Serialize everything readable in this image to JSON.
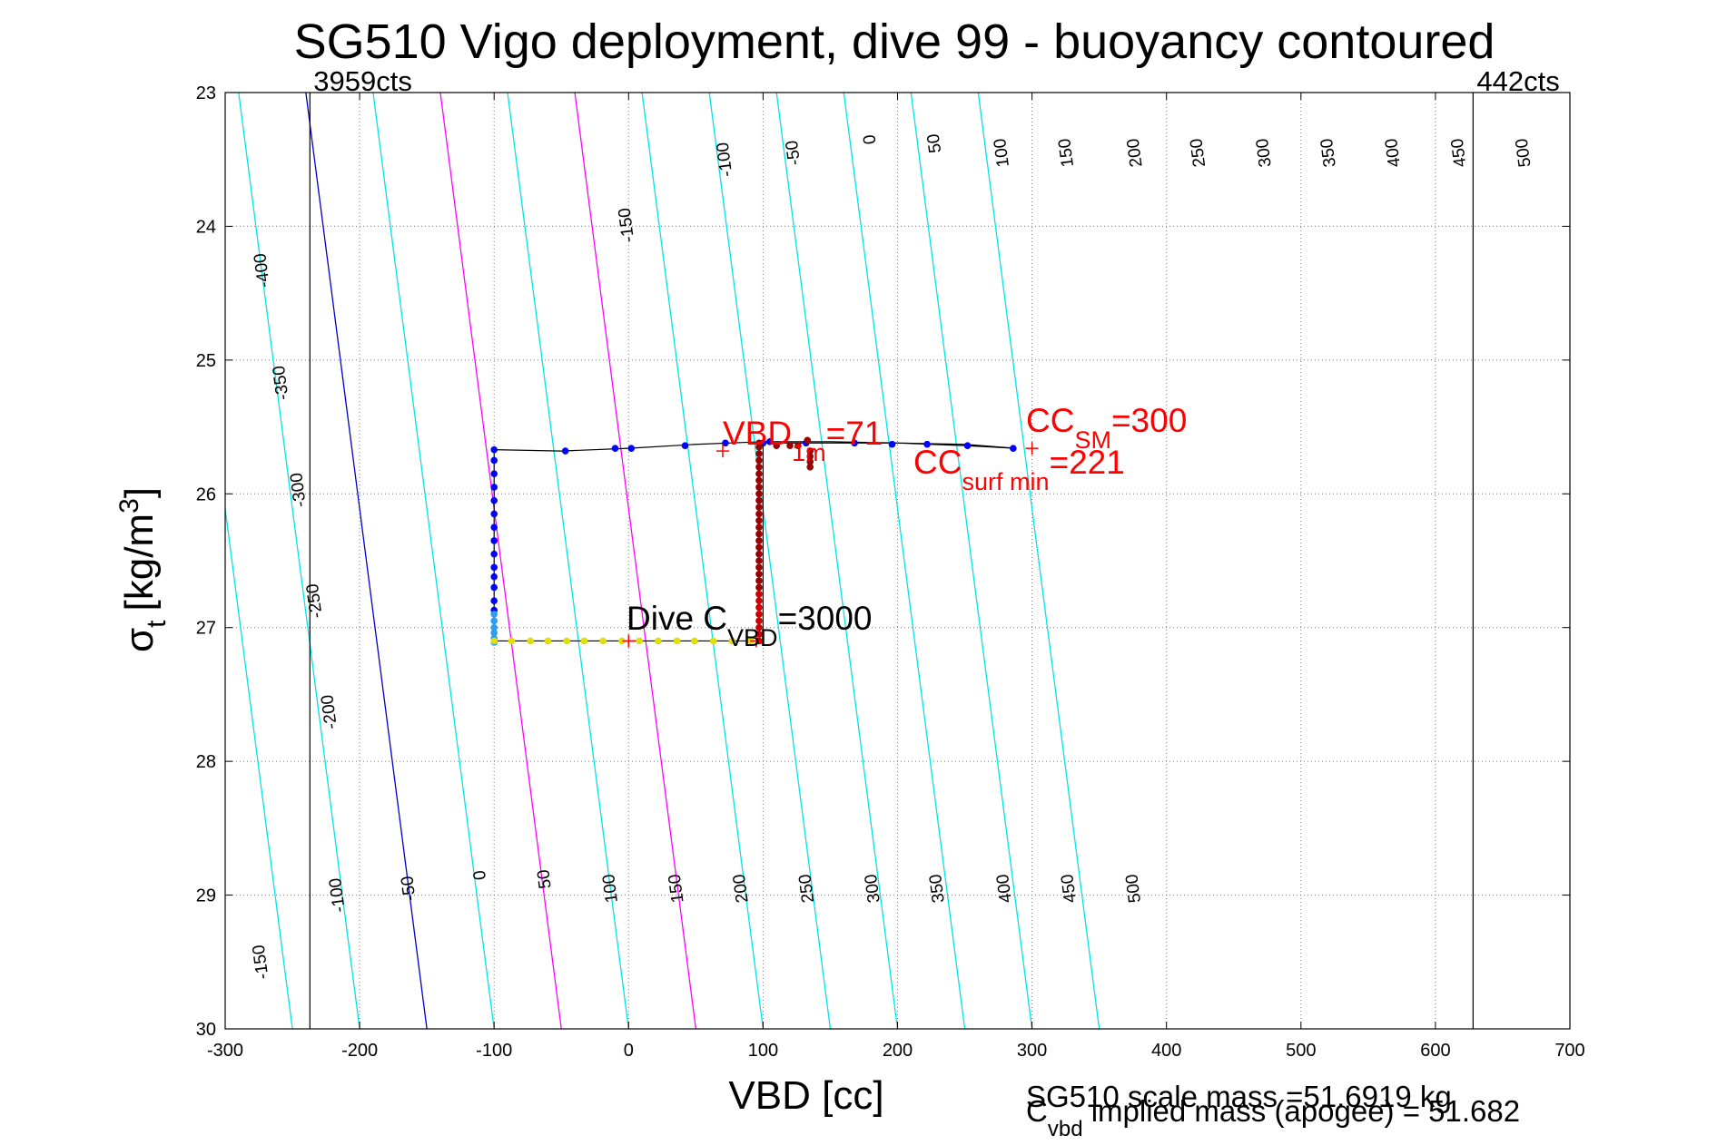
{
  "chart_data": {
    "type": "line",
    "title": "SG510 Vigo deployment, dive 99 - buoyancy contoured",
    "xlabel": "VBD [cc]",
    "ylabel_main": "σ",
    "ylabel_sub": "t",
    "ylabel_unit_pre": "[kg/m",
    "ylabel_unit_sup": "3",
    "ylabel_unit_post": "]",
    "xlim": [
      -300,
      700
    ],
    "ylim": [
      23,
      30
    ],
    "y_reversed": true,
    "grid": true,
    "xticks": [
      -300,
      -200,
      -100,
      0,
      100,
      200,
      300,
      400,
      500,
      600,
      700
    ],
    "yticks": [
      23,
      24,
      25,
      26,
      27,
      28,
      29,
      30
    ],
    "count_labels": {
      "left": {
        "text": "3959cts",
        "x": -237
      },
      "right": {
        "text": "442cts",
        "x": 628
      }
    },
    "contours": {
      "levels": [
        -400,
        -350,
        -300,
        -250,
        -200,
        -150,
        -100,
        -50,
        0,
        50,
        100,
        150,
        200,
        250,
        300,
        350,
        400,
        450,
        500
      ],
      "x_at_top": [
        -640,
        -590,
        -540,
        -490,
        -440,
        -390,
        -340,
        -290,
        -240,
        -190,
        -140,
        -90,
        -40,
        10,
        60,
        110,
        160,
        210,
        260
      ],
      "x_at_bottom": [
        -550,
        -500,
        -450,
        -400,
        -350,
        -300,
        -250,
        -200,
        -150,
        -100,
        -50,
        0,
        50,
        100,
        150,
        200,
        250,
        300,
        350
      ],
      "color_default": "#00e5e5",
      "special": [
        {
          "level": 0,
          "color": "#0000cc"
        },
        {
          "level": 100,
          "color": "#ff00ff"
        },
        {
          "level": 200,
          "color": "#ff00ff"
        }
      ]
    },
    "contour_labels_top": [
      {
        "text": "-400",
        "x": -272,
        "y": 24.33
      },
      {
        "text": "-350",
        "x": -258,
        "y": 25.17
      },
      {
        "text": "-300",
        "x": -245,
        "y": 25.97
      },
      {
        "text": "-250",
        "x": -233,
        "y": 26.8
      },
      {
        "text": "-200",
        "x": -222,
        "y": 27.63
      },
      {
        "text": "-150",
        "x": -1,
        "y": 23.99
      },
      {
        "text": "-100",
        "x": 72,
        "y": 23.5
      },
      {
        "text": "-50",
        "x": 123,
        "y": 23.45
      },
      {
        "text": "0",
        "x": 180,
        "y": 23.35
      },
      {
        "text": "50",
        "x": 228,
        "y": 23.38
      },
      {
        "text": "100",
        "x": 278,
        "y": 23.45
      },
      {
        "text": "150",
        "x": 326,
        "y": 23.45
      },
      {
        "text": "200",
        "x": 377,
        "y": 23.45
      },
      {
        "text": "250",
        "x": 424,
        "y": 23.45
      },
      {
        "text": "300",
        "x": 473,
        "y": 23.45
      },
      {
        "text": "350",
        "x": 521,
        "y": 23.45
      },
      {
        "text": "400",
        "x": 569,
        "y": 23.45
      },
      {
        "text": "450",
        "x": 618,
        "y": 23.45
      },
      {
        "text": "500",
        "x": 666,
        "y": 23.45
      }
    ],
    "contour_labels_bottom": [
      {
        "text": "-150",
        "x": -273,
        "y": 29.5
      },
      {
        "text": "-100",
        "x": -216,
        "y": 29.0
      },
      {
        "text": "-50",
        "x": -163,
        "y": 28.95
      },
      {
        "text": "0",
        "x": -110,
        "y": 28.85
      },
      {
        "text": "50",
        "x": -62,
        "y": 28.88
      },
      {
        "text": "100",
        "x": -13,
        "y": 28.95
      },
      {
        "text": "150",
        "x": 36,
        "y": 28.95
      },
      {
        "text": "200",
        "x": 84,
        "y": 28.95
      },
      {
        "text": "250",
        "x": 133,
        "y": 28.95
      },
      {
        "text": "300",
        "x": 182,
        "y": 28.95
      },
      {
        "text": "350",
        "x": 230,
        "y": 28.95
      },
      {
        "text": "400",
        "x": 280,
        "y": 28.95
      },
      {
        "text": "450",
        "x": 328,
        "y": 28.95
      },
      {
        "text": "500",
        "x": 376,
        "y": 28.95
      }
    ],
    "trajectory_line": {
      "color": "#000000",
      "x": [
        -100,
        -100,
        -50,
        0,
        50,
        100,
        150,
        200,
        250,
        288,
        250,
        200,
        150,
        100,
        100,
        100,
        100,
        100,
        95,
        50,
        0,
        -50,
        -100,
        -100
      ],
      "y": [
        25.75,
        25.67,
        25.68,
        25.66,
        25.63,
        25.61,
        25.61,
        25.62,
        25.63,
        25.66,
        25.64,
        25.62,
        25.62,
        25.62,
        26.2,
        26.6,
        27.0,
        27.12,
        27.1,
        27.1,
        27.1,
        27.1,
        27.1,
        25.75
      ]
    },
    "series_points": [
      {
        "color": "#0000ff",
        "x": [
          -100,
          -100,
          -100,
          -100,
          -100,
          -100,
          -100,
          -100,
          -100,
          -100,
          -100,
          -100,
          -100,
          -100,
          -47,
          -10,
          2,
          42,
          72,
          100,
          105,
          132,
          168,
          196,
          222,
          252,
          286
        ],
        "y": [
          25.67,
          25.75,
          25.85,
          25.95,
          26.05,
          26.15,
          26.25,
          26.35,
          26.45,
          26.55,
          26.62,
          26.7,
          26.8,
          26.87,
          25.68,
          25.66,
          25.66,
          25.64,
          25.62,
          25.62,
          25.61,
          25.62,
          25.62,
          25.63,
          25.63,
          25.64,
          25.66
        ]
      },
      {
        "color": "#2a9df4",
        "x": [
          -100,
          -100,
          -100,
          -100,
          -100,
          -100
        ],
        "y": [
          26.9,
          26.95,
          27.0,
          27.04,
          27.08,
          27.11
        ]
      },
      {
        "color": "#e0e000",
        "x": [
          -100,
          -87,
          -73,
          -60,
          -46,
          -33,
          -19,
          -5,
          8,
          22,
          36,
          49,
          63,
          77,
          91
        ],
        "y": [
          27.1,
          27.1,
          27.1,
          27.1,
          27.1,
          27.1,
          27.1,
          27.1,
          27.1,
          27.1,
          27.1,
          27.1,
          27.1,
          27.1,
          27.1
        ]
      },
      {
        "color": "#cc0000",
        "x": [
          97,
          97,
          97,
          97,
          97,
          97,
          97,
          97
        ],
        "y": [
          27.1,
          27.05,
          27.0,
          26.95,
          26.9,
          26.85,
          26.8,
          26.75
        ]
      },
      {
        "color": "#990000",
        "x": [
          97,
          97,
          97,
          97,
          97,
          97,
          97,
          97,
          97,
          97,
          97,
          97,
          97,
          97,
          97,
          97,
          97,
          97,
          97,
          97,
          97,
          97,
          97,
          110,
          120,
          126,
          133,
          135,
          135,
          135,
          135
        ],
        "y": [
          26.7,
          26.65,
          26.6,
          26.55,
          26.5,
          26.45,
          26.4,
          26.35,
          26.3,
          26.25,
          26.2,
          26.15,
          26.1,
          26.05,
          26.0,
          25.95,
          25.9,
          25.85,
          25.8,
          25.75,
          25.7,
          25.65,
          25.62,
          25.64,
          25.64,
          25.64,
          25.6,
          25.68,
          25.72,
          25.76,
          25.8
        ]
      }
    ],
    "red_crosses": [
      {
        "x": 70,
        "y": 25.68
      },
      {
        "x": 300,
        "y": 25.66
      },
      {
        "x": 0,
        "y": 27.1
      },
      {
        "x": 95,
        "y": 27.1
      }
    ],
    "annotations": {
      "vbd_main": "VBD",
      "vbd_sub": "1m",
      "vbd_val": "=71",
      "ccsm_main": "CC",
      "ccsm_sub": "SM",
      "ccsm_val": "=300",
      "ccsurf_main": "CC",
      "ccsurf_sub": "surf min",
      "ccsurf_val": "=221",
      "dive_main": "Dive C",
      "dive_sub": "VBD",
      "dive_val": "=3000",
      "scale_mass": "SG510 scale mass =51.6919 kg",
      "implied_main": "C",
      "implied_sub": "vbd",
      "implied_rest": " implied mass (apogee) = 51.682"
    }
  }
}
